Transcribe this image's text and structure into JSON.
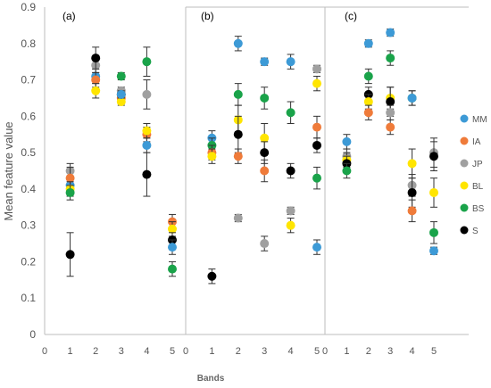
{
  "chart_data": {
    "type": "scatter",
    "title": "",
    "ylabel": "Mean feature value",
    "xlabel": "Bands",
    "ylim": [
      0,
      0.9
    ],
    "y_ticks": [
      "0",
      "0.1",
      "0.2",
      "0.3",
      "0.4",
      "0.5",
      "0.6",
      "0.7",
      "0.8",
      "0.9"
    ],
    "grid": false,
    "legend_position": "right",
    "series_legend": [
      {
        "name": "MM",
        "color": "#3d9ad6"
      },
      {
        "name": "IA",
        "color": "#ef7b3a"
      },
      {
        "name": "JP",
        "color": "#a0a0a0"
      },
      {
        "name": "BL",
        "color": "#ffe500"
      },
      {
        "name": "BS",
        "color": "#1aa34a"
      },
      {
        "name": "S",
        "color": "#000000"
      }
    ],
    "panels": [
      {
        "label": "(a)",
        "x_ticks": [
          "0",
          "1",
          "2",
          "3",
          "4",
          "5"
        ],
        "points": [
          {
            "series": "MM",
            "x": 1,
            "y": 0.41,
            "err": 0
          },
          {
            "series": "JP",
            "x": 1,
            "y": 0.45,
            "err": 0.02
          },
          {
            "series": "IA",
            "x": 1,
            "y": 0.43,
            "err": 0.03
          },
          {
            "series": "BL",
            "x": 1,
            "y": 0.4,
            "err": 0.02
          },
          {
            "series": "BS",
            "x": 1,
            "y": 0.39,
            "err": 0.02
          },
          {
            "series": "S",
            "x": 1,
            "y": 0.22,
            "err": 0.06
          },
          {
            "series": "MM",
            "x": 2,
            "y": 0.71,
            "err": 0.02
          },
          {
            "series": "JP",
            "x": 2,
            "y": 0.74,
            "err": 0.02
          },
          {
            "series": "IA",
            "x": 2,
            "y": 0.7,
            "err": 0.02
          },
          {
            "series": "BL",
            "x": 2,
            "y": 0.67,
            "err": 0.02
          },
          {
            "series": "S",
            "x": 2,
            "y": 0.76,
            "err": 0.03
          },
          {
            "series": "BS",
            "x": 3,
            "y": 0.71,
            "err": 0.01
          },
          {
            "series": "JP",
            "x": 3,
            "y": 0.67,
            "err": 0.01
          },
          {
            "series": "IA",
            "x": 3,
            "y": 0.65,
            "err": 0.01
          },
          {
            "series": "BL",
            "x": 3,
            "y": 0.64,
            "err": 0.01
          },
          {
            "series": "S",
            "x": 3,
            "y": 0.66,
            "err": 0.01
          },
          {
            "series": "MM",
            "x": 3,
            "y": 0.66,
            "err": 0
          },
          {
            "series": "BS",
            "x": 4,
            "y": 0.75,
            "err": 0.04
          },
          {
            "series": "JP",
            "x": 4,
            "y": 0.66,
            "err": 0.04
          },
          {
            "series": "IA",
            "x": 4,
            "y": 0.55,
            "err": 0.02
          },
          {
            "series": "BL",
            "x": 4,
            "y": 0.56,
            "err": 0.02
          },
          {
            "series": "MM",
            "x": 4,
            "y": 0.52,
            "err": 0.02
          },
          {
            "series": "S",
            "x": 4,
            "y": 0.44,
            "err": 0.06
          },
          {
            "series": "IA",
            "x": 5,
            "y": 0.31,
            "err": 0.02
          },
          {
            "series": "BL",
            "x": 5,
            "y": 0.29,
            "err": 0.02
          },
          {
            "series": "S",
            "x": 5,
            "y": 0.26,
            "err": 0.02
          },
          {
            "series": "MM",
            "x": 5,
            "y": 0.24,
            "err": 0.02
          },
          {
            "series": "BS",
            "x": 5,
            "y": 0.18,
            "err": 0.02
          }
        ]
      },
      {
        "label": "(b)",
        "x_ticks": [
          "0",
          "1",
          "2",
          "3",
          "4",
          "5"
        ],
        "points": [
          {
            "series": "MM",
            "x": 1,
            "y": 0.54,
            "err": 0.02
          },
          {
            "series": "BS",
            "x": 1,
            "y": 0.52,
            "err": 0.02
          },
          {
            "series": "IA",
            "x": 1,
            "y": 0.5,
            "err": 0.02
          },
          {
            "series": "BL",
            "x": 1,
            "y": 0.49,
            "err": 0.02
          },
          {
            "series": "S",
            "x": 1,
            "y": 0.16,
            "err": 0.02
          },
          {
            "series": "MM",
            "x": 2,
            "y": 0.8,
            "err": 0.02
          },
          {
            "series": "BS",
            "x": 2,
            "y": 0.66,
            "err": 0.03
          },
          {
            "series": "BL",
            "x": 2,
            "y": 0.59,
            "err": 0.04
          },
          {
            "series": "S",
            "x": 2,
            "y": 0.55,
            "err": 0.05
          },
          {
            "series": "IA",
            "x": 2,
            "y": 0.49,
            "err": 0.02
          },
          {
            "series": "JP",
            "x": 2,
            "y": 0.32,
            "err": 0.01
          },
          {
            "series": "MM",
            "x": 3,
            "y": 0.75,
            "err": 0.01
          },
          {
            "series": "BS",
            "x": 3,
            "y": 0.65,
            "err": 0.03
          },
          {
            "series": "BL",
            "x": 3,
            "y": 0.54,
            "err": 0.04
          },
          {
            "series": "S",
            "x": 3,
            "y": 0.5,
            "err": 0.03
          },
          {
            "series": "IA",
            "x": 3,
            "y": 0.45,
            "err": 0.03
          },
          {
            "series": "JP",
            "x": 3,
            "y": 0.25,
            "err": 0.02
          },
          {
            "series": "MM",
            "x": 4,
            "y": 0.75,
            "err": 0.02
          },
          {
            "series": "BS",
            "x": 4,
            "y": 0.61,
            "err": 0.03
          },
          {
            "series": "S",
            "x": 4,
            "y": 0.45,
            "err": 0.02
          },
          {
            "series": "JP",
            "x": 4,
            "y": 0.34,
            "err": 0.01
          },
          {
            "series": "BL",
            "x": 4,
            "y": 0.3,
            "err": 0.02
          },
          {
            "series": "JP",
            "x": 5,
            "y": 0.73,
            "err": 0.01
          },
          {
            "series": "BL",
            "x": 5,
            "y": 0.69,
            "err": 0.02
          },
          {
            "series": "IA",
            "x": 5,
            "y": 0.57,
            "err": 0.03
          },
          {
            "series": "S",
            "x": 5,
            "y": 0.52,
            "err": 0.02
          },
          {
            "series": "BS",
            "x": 5,
            "y": 0.43,
            "err": 0.03
          },
          {
            "series": "MM",
            "x": 5,
            "y": 0.24,
            "err": 0.02
          }
        ]
      },
      {
        "label": "(c)",
        "x_ticks": [
          "0",
          "1",
          "2",
          "3",
          "4",
          "5"
        ],
        "points": [
          {
            "series": "MM",
            "x": 1,
            "y": 0.53,
            "err": 0.02
          },
          {
            "series": "JP",
            "x": 1,
            "y": 0.49,
            "err": 0.02
          },
          {
            "series": "BL",
            "x": 1,
            "y": 0.48,
            "err": 0.02
          },
          {
            "series": "S",
            "x": 1,
            "y": 0.47,
            "err": 0.02
          },
          {
            "series": "BS",
            "x": 1,
            "y": 0.45,
            "err": 0.02
          },
          {
            "series": "MM",
            "x": 2,
            "y": 0.8,
            "err": 0.01
          },
          {
            "series": "BS",
            "x": 2,
            "y": 0.71,
            "err": 0.02
          },
          {
            "series": "S",
            "x": 2,
            "y": 0.66,
            "err": 0.02
          },
          {
            "series": "BL",
            "x": 2,
            "y": 0.64,
            "err": 0.02
          },
          {
            "series": "IA",
            "x": 2,
            "y": 0.61,
            "err": 0.02
          },
          {
            "series": "MM",
            "x": 3,
            "y": 0.83,
            "err": 0.01
          },
          {
            "series": "BS",
            "x": 3,
            "y": 0.76,
            "err": 0.02
          },
          {
            "series": "BL",
            "x": 3,
            "y": 0.65,
            "err": 0.03
          },
          {
            "series": "S",
            "x": 3,
            "y": 0.64,
            "err": 0.04
          },
          {
            "series": "JP",
            "x": 3,
            "y": 0.61,
            "err": 0.02
          },
          {
            "series": "IA",
            "x": 3,
            "y": 0.57,
            "err": 0.02
          },
          {
            "series": "BS",
            "x": 4,
            "y": 0.65,
            "err": 0.02
          },
          {
            "series": "MM",
            "x": 4,
            "y": 0.65,
            "err": 0.02
          },
          {
            "series": "BL",
            "x": 4,
            "y": 0.47,
            "err": 0.04
          },
          {
            "series": "JP",
            "x": 4,
            "y": 0.41,
            "err": 0.03
          },
          {
            "series": "S",
            "x": 4,
            "y": 0.39,
            "err": 0.04
          },
          {
            "series": "IA",
            "x": 4,
            "y": 0.34,
            "err": 0.03
          },
          {
            "series": "JP",
            "x": 5,
            "y": 0.5,
            "err": 0.04
          },
          {
            "series": "S",
            "x": 5,
            "y": 0.49,
            "err": 0.04
          },
          {
            "series": "BL",
            "x": 5,
            "y": 0.39,
            "err": 0.04
          },
          {
            "series": "BS",
            "x": 5,
            "y": 0.28,
            "err": 0.03
          },
          {
            "series": "MM",
            "x": 5,
            "y": 0.23,
            "err": 0.01
          }
        ]
      }
    ]
  }
}
